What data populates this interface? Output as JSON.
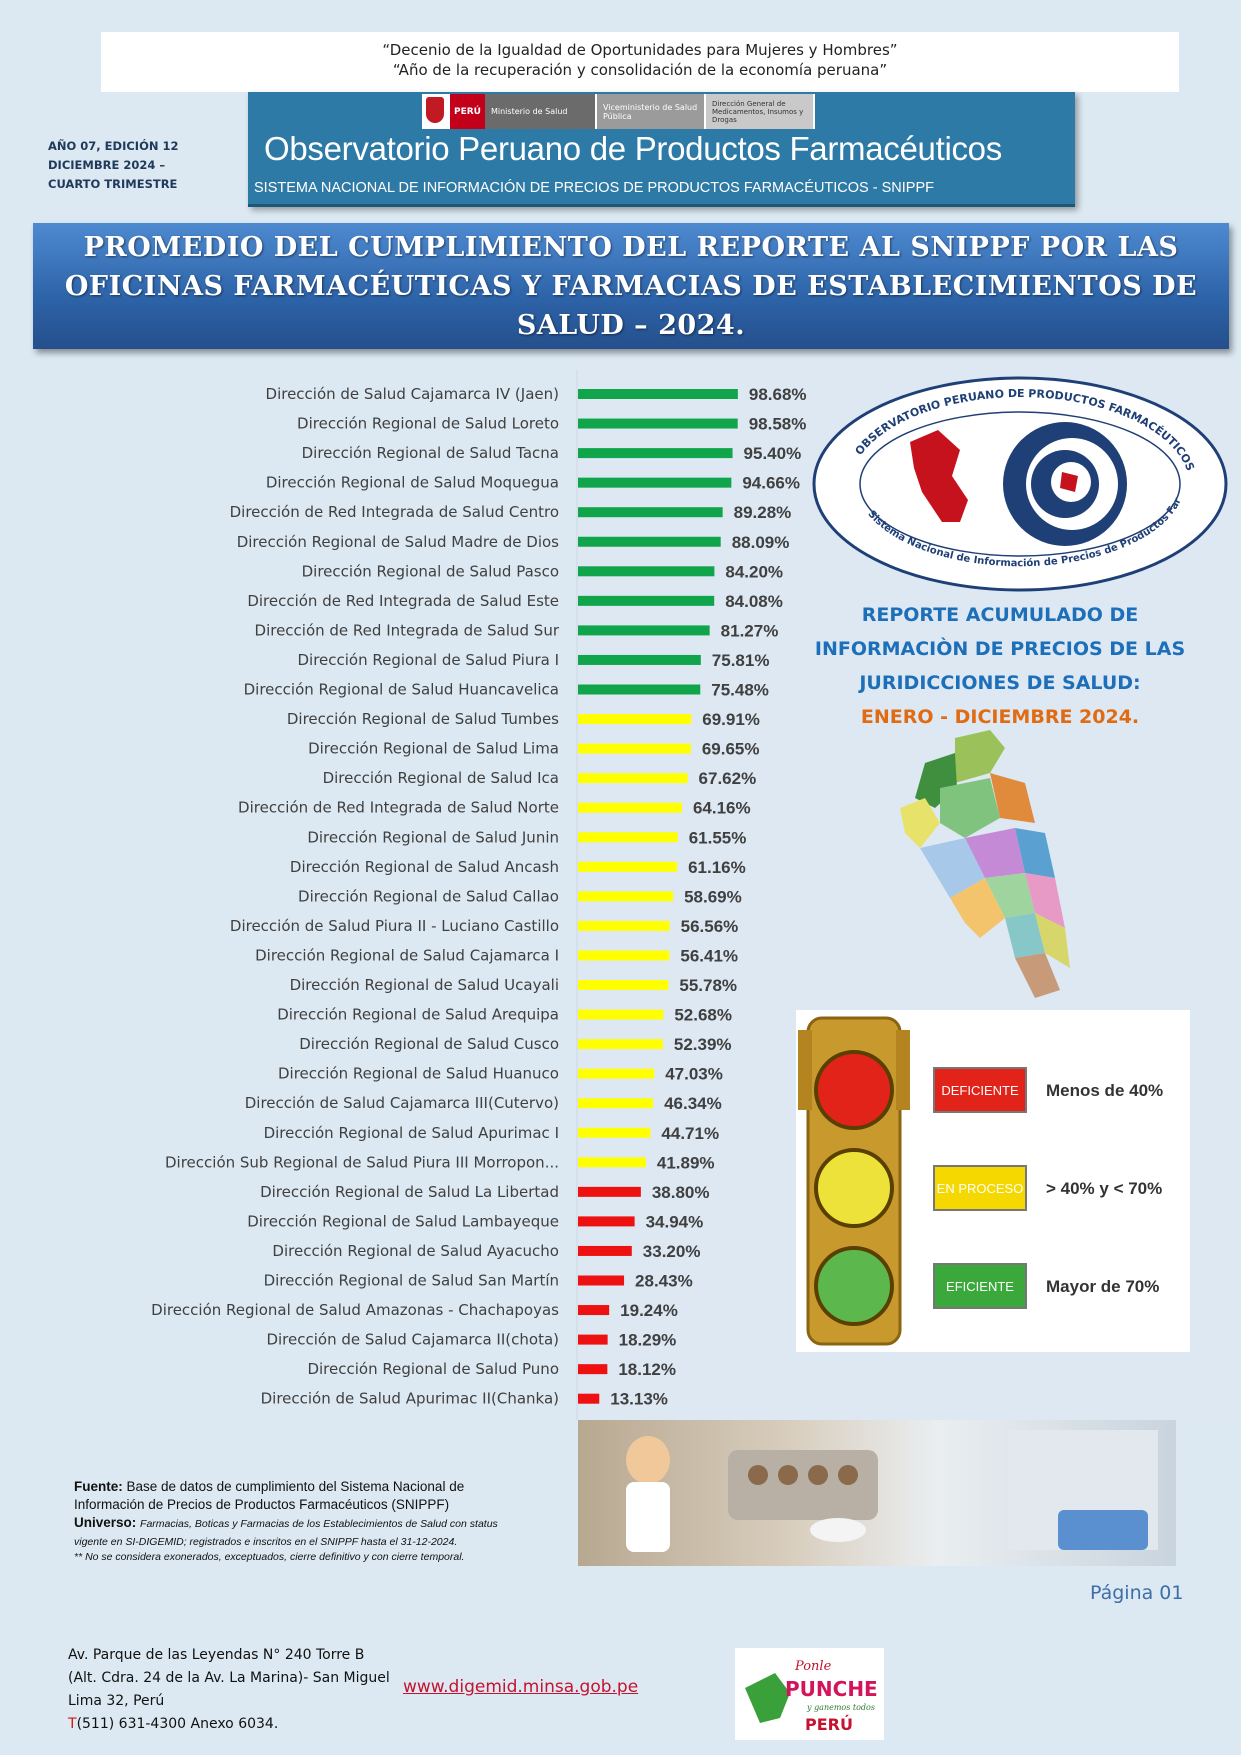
{
  "header": {
    "line1": "“Decenio de la Igualdad de Oportunidades para Mujeres y Hombres”",
    "line2": "“Año de la recuperación y consolidación de la economía peruana”"
  },
  "edition": {
    "line1": "AÑO 07, EDICIÓN 12",
    "line2": "DICIEMBRE 2024 –",
    "line3": "CUARTO TRIMESTRE"
  },
  "banner": {
    "peru": "PERÚ",
    "ministerio": "Ministerio de Salud",
    "vice": "Viceministerio de Salud Pública",
    "direccion": "Dirección General de Medicamentos, Insumos y Drogas",
    "title": "Observatorio Peruano de Productos Farmacéuticos",
    "subtitle": "SISTEMA NACIONAL DE INFORMACIÓN DE PRECIOS DE PRODUCTOS FARMACÉUTICOS - SNIPPF"
  },
  "main_title": "PROMEDIO DEL CUMPLIMIENTO DEL REPORTE AL SNIPPF POR LAS OFICINAS FARMACÉUTICAS Y FARMACIAS DE ESTABLECIMIENTOS DE SALUD – 2024.",
  "chart_data": {
    "type": "bar",
    "orientation": "horizontal",
    "title": "",
    "xlim": [
      0,
      100
    ],
    "grid": false,
    "categories": [
      "Dirección de Salud Cajamarca IV (Jaen)",
      "Dirección Regional de Salud Loreto",
      "Dirección Regional de Salud Tacna",
      "Dirección Regional de Salud Moquegua",
      "Dirección de Red Integrada de Salud Centro",
      "Dirección Regional de Salud Madre de Dios",
      "Dirección Regional de Salud Pasco",
      "Dirección de Red Integrada de Salud Este",
      "Dirección de Red Integrada de Salud Sur",
      "Dirección Regional de Salud Piura I",
      "Dirección Regional de Salud Huancavelica",
      "Dirección Regional de Salud Tumbes",
      "Dirección Regional de Salud Lima",
      "Dirección Regional de Salud Ica",
      "Dirección de Red Integrada de Salud Norte",
      "Dirección Regional de Salud Junin",
      "Dirección Regional de Salud Ancash",
      "Dirección Regional de Salud Callao",
      "Dirección de Salud Piura II - Luciano Castillo",
      "Dirección Regional de Salud Cajamarca I",
      "Dirección Regional de Salud Ucayali",
      "Dirección Regional de Salud Arequipa",
      "Dirección Regional de Salud Cusco",
      "Dirección Regional de Salud Huanuco",
      "Dirección de Salud Cajamarca III(Cutervo)",
      "Dirección Regional de Salud Apurimac I",
      "Dirección Sub Regional de Salud Piura III Morropon...",
      "Dirección Regional de Salud La Libertad",
      "Dirección Regional de Salud Lambayeque",
      "Dirección Regional de Salud Ayacucho",
      "Dirección Regional de Salud San Martín",
      "Dirección Regional de Salud Amazonas - Chachapoyas",
      "Dirección de Salud Cajamarca II(chota)",
      "Dirección Regional de Salud Puno",
      "Dirección de Salud Apurimac II(Chanka)"
    ],
    "values": [
      98.68,
      98.58,
      95.4,
      94.66,
      89.28,
      88.09,
      84.2,
      84.08,
      81.27,
      75.81,
      75.48,
      69.91,
      69.65,
      67.62,
      64.16,
      61.55,
      61.16,
      58.69,
      56.56,
      56.41,
      55.78,
      52.68,
      52.39,
      47.03,
      46.34,
      44.71,
      41.89,
      38.8,
      34.94,
      33.2,
      28.43,
      19.24,
      18.29,
      18.12,
      13.13
    ],
    "labels": [
      "98.68%",
      "98.58%",
      "95.40%",
      "94.66%",
      "89.28%",
      "88.09%",
      "84.20%",
      "84.08%",
      "81.27%",
      "75.81%",
      "75.48%",
      "69.91%",
      "69.65%",
      "67.62%",
      "64.16%",
      "61.55%",
      "61.16%",
      "58.69%",
      "56.56%",
      "56.41%",
      "55.78%",
      "52.68%",
      "52.39%",
      "47.03%",
      "46.34%",
      "44.71%",
      "41.89%",
      "38.80%",
      "34.94%",
      "33.20%",
      "28.43%",
      "19.24%",
      "18.29%",
      "18.12%",
      "13.13%"
    ],
    "colors": {
      "eficiente": "#10a54a",
      "en_proceso": "#ffff00",
      "deficiente": "#ee1111"
    }
  },
  "emblem": {
    "ring_top": "OBSERVATORIO PERUANO DE PRODUCTOS FARMACÉUTICOS",
    "ring_bottom": "Sistema Nacional de Información de Precios de Productos Farmacéuticos"
  },
  "report": {
    "line1": "REPORTE ACUMULADO DE",
    "line2": "INFORMACIÒN DE PRECIOS DE LAS",
    "line3": "JURIDICCIONES DE SALUD:",
    "date": "ENERO - DICIEMBRE 2024."
  },
  "legend": {
    "items": [
      {
        "tag": "DEFICIENTE",
        "range": "Menos de 40%",
        "color": "#e2231a"
      },
      {
        "tag": "EN PROCESO",
        "range": "> 40% y < 70%",
        "color": "#f4d800"
      },
      {
        "tag": "EFICIENTE",
        "range": "Mayor de 70%",
        "color": "#3aa83a"
      }
    ]
  },
  "sources": {
    "fuente_label": "Fuente:",
    "fuente_text": "Base de datos de cumplimiento del Sistema Nacional de Información de Precios de Productos Farmacéuticos (SNIPPF)",
    "universo_label": "Universo:",
    "universo_text": "Farmacias, Boticas y Farmacias de los Establecimientos de Salud con status vigente en SI-DIGEMID; registrados e inscritos en el SNIPPF hasta el 31-12-2024.",
    "note": "** No se considera exonerados, exceptuados, cierre definitivo y con cierre temporal."
  },
  "page": "Página 01",
  "footer": {
    "addr1": "Av. Parque de las Leyendas N° 240 Torre B",
    "addr2": "(Alt. Cdra. 24 de la Av. La Marina)- San Miguel",
    "addr3": "Lima 32, Perú",
    "phone_prefix": "T",
    "phone": "(511) 631-4300  Anexo 6034.",
    "web": "www.digemid.minsa.gob.pe",
    "punche1": "Ponle",
    "punche2": "PUNCHE",
    "punche3": "y ganemos todos",
    "punche4": "PERÚ"
  }
}
